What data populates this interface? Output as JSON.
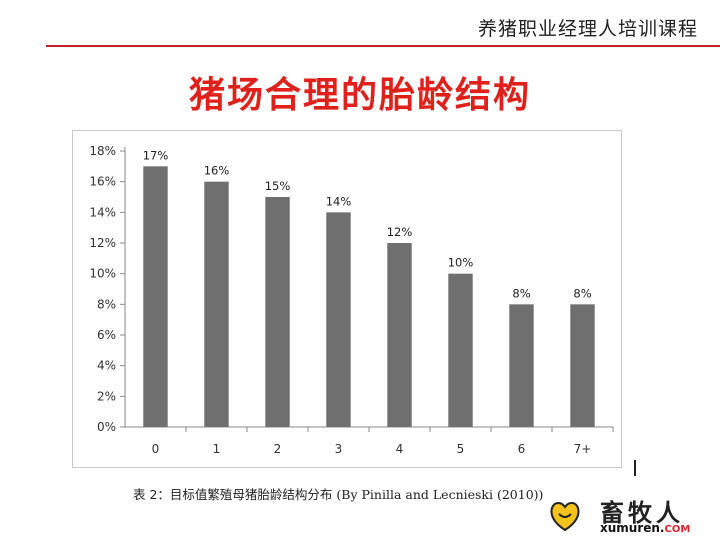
{
  "header": {
    "course": "养猪职业经理人培训课程"
  },
  "slide": {
    "title": "猪场合理的胎龄结构"
  },
  "caption": {
    "label": "表 2：目标值繁殖母猪胎龄结构分布",
    "source": "(By Pinilla and Lecnieski (2010))"
  },
  "logo": {
    "name": "畜牧人",
    "url": "xumuren.",
    "tld": "COM"
  },
  "colors": {
    "title": "#e0211b",
    "bar": "#6f6f6f",
    "rule": "#c0212b"
  },
  "chart_data": {
    "type": "bar",
    "categories": [
      "0",
      "1",
      "2",
      "3",
      "4",
      "5",
      "6",
      "7+"
    ],
    "values": [
      17,
      16,
      15,
      14,
      12,
      10,
      8,
      8
    ],
    "value_labels": [
      "17%",
      "16%",
      "15%",
      "14%",
      "12%",
      "10%",
      "8%",
      "8%"
    ],
    "y_ticks": [
      "0%",
      "2%",
      "4%",
      "6%",
      "8%",
      "10%",
      "12%",
      "14%",
      "16%",
      "18%"
    ],
    "ylim": [
      0,
      18
    ],
    "grid": false,
    "legend": "none"
  }
}
